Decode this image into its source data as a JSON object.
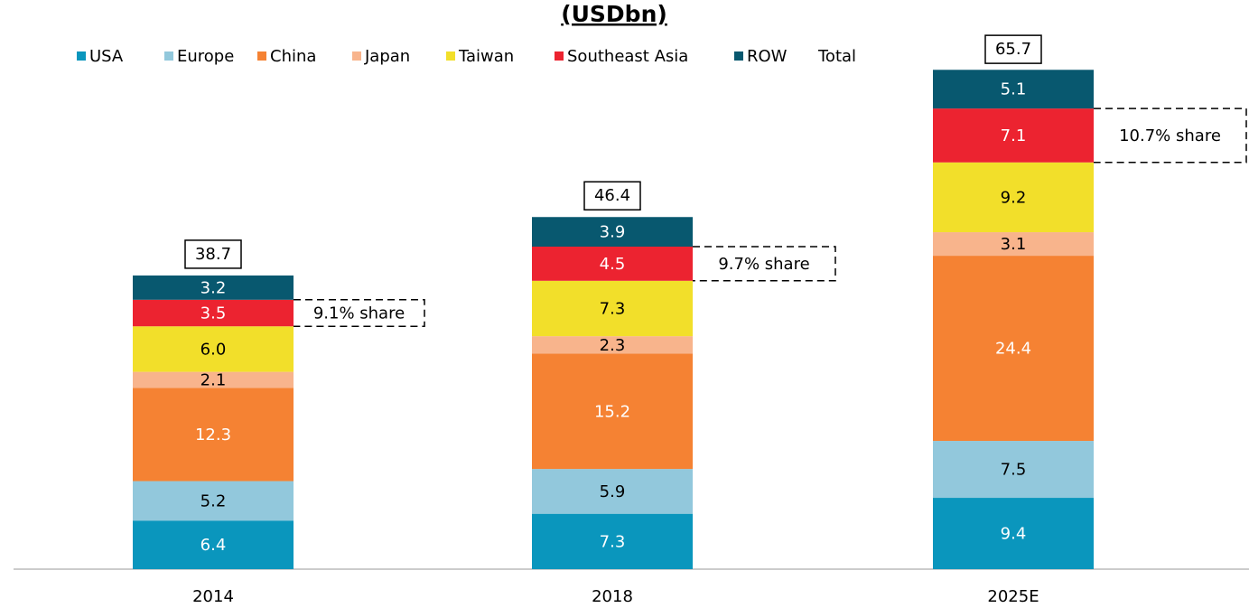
{
  "chart_data": {
    "type": "stacked_bar",
    "title": "(USDbn)",
    "categories": [
      "2014",
      "2018",
      "2025E"
    ],
    "ylim": [
      0,
      70
    ],
    "series": [
      {
        "name": "USA",
        "color": "#0a96bd",
        "values": [
          6.4,
          7.3,
          9.4
        ]
      },
      {
        "name": "Europe",
        "color": "#92c8dc",
        "values": [
          5.2,
          5.9,
          7.5
        ]
      },
      {
        "name": "China",
        "color": "#f58233",
        "values": [
          12.3,
          15.2,
          24.4
        ]
      },
      {
        "name": "Japan",
        "color": "#f8b48c",
        "values": [
          2.1,
          2.3,
          3.1
        ]
      },
      {
        "name": "Taiwan",
        "color": "#f2df2a",
        "values": [
          6.0,
          7.3,
          9.2
        ],
        "value_labels": [
          "6.0",
          "7.3",
          "9.2"
        ]
      },
      {
        "name": "Southeast Asia",
        "color": "#ec2330",
        "values": [
          3.5,
          4.5,
          7.1
        ]
      },
      {
        "name": "ROW",
        "color": "#08586f",
        "values": [
          3.2,
          3.9,
          5.1
        ]
      }
    ],
    "totals": {
      "name": "Total",
      "values": [
        38.7,
        46.4,
        65.7
      ]
    },
    "annotations": [
      "9.1% share",
      "9.7% share",
      "10.7% share"
    ]
  }
}
